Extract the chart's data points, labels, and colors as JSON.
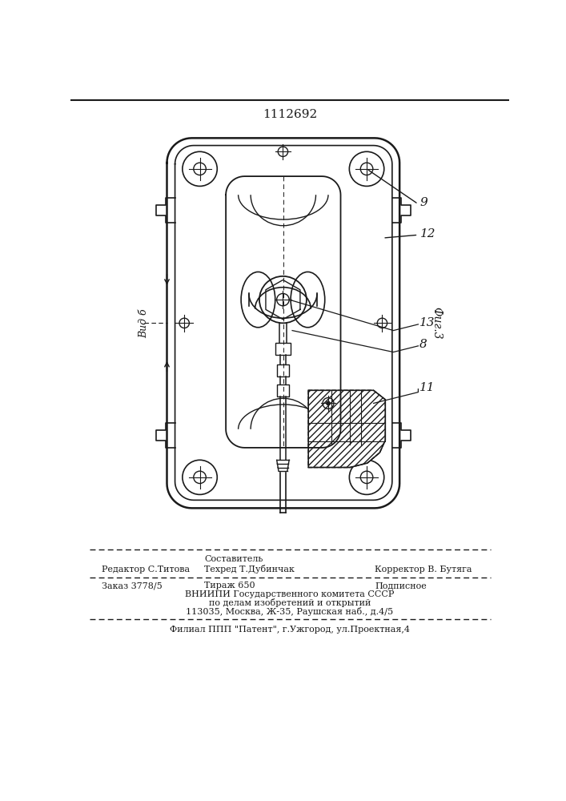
{
  "patent_number": "1112692",
  "fig_label": "Фиг.3",
  "vid_label": "Вид б",
  "labels": [
    "9",
    "12",
    "13",
    "8",
    "11"
  ],
  "footer_line1_left": "Редактор С.Титова",
  "footer_line1_center_top": "Составитель",
  "footer_line1_center": "Техред Т.Дубинчак",
  "footer_line1_right": "Корректор В. Бутяга",
  "footer_line2_left": "Заказ 3778/5",
  "footer_line2_center": "Тираж 650",
  "footer_line2_right": "Подписное",
  "footer_line3": "ВНИИПИ Государственного комитета СССР",
  "footer_line4": "по делам изобретений и открытий",
  "footer_line5": "113035, Москва, Ж-35, Раушская наб., д.4/5",
  "footer_line6": "Филиал ППП \"Патент\", г.Ужгород, ул.Проектная,4",
  "bg_color": "#ffffff",
  "line_color": "#1a1a1a"
}
